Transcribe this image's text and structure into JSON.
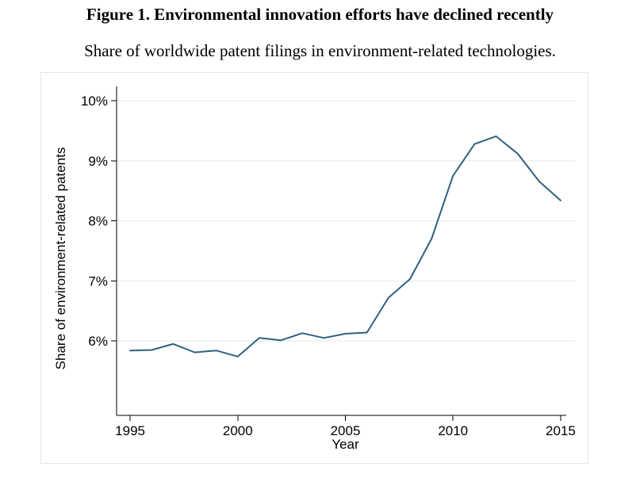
{
  "page": {
    "title": "Figure 1. Environmental innovation efforts have declined recently",
    "subtitle": "Share of worldwide patent filings in environment-related technologies."
  },
  "chart_data": {
    "type": "line",
    "title": "Figure 1. Environmental innovation efforts have declined recently",
    "subtitle": "Share of worldwide patent filings in environment-related technologies.",
    "xlabel": "Year",
    "ylabel": "Share of environment-related patents",
    "x": [
      1995,
      1996,
      1997,
      1998,
      1999,
      2000,
      2001,
      2002,
      2003,
      2004,
      2005,
      2006,
      2007,
      2008,
      2009,
      2010,
      2011,
      2012,
      2013,
      2014,
      2015
    ],
    "values": [
      5.84,
      5.85,
      5.95,
      5.81,
      5.84,
      5.74,
      6.05,
      6.01,
      6.13,
      6.05,
      6.12,
      6.14,
      6.72,
      7.03,
      7.7,
      8.75,
      9.28,
      9.41,
      9.12,
      8.66,
      8.34
    ],
    "x_ticks": [
      {
        "value": 1995,
        "label": "1995"
      },
      {
        "value": 2000,
        "label": "2000"
      },
      {
        "value": 2005,
        "label": "2005"
      },
      {
        "value": 2010,
        "label": "2010"
      },
      {
        "value": 2015,
        "label": "2015"
      }
    ],
    "y_ticks": [
      {
        "value": 6,
        "label": "6%"
      },
      {
        "value": 7,
        "label": "7%"
      },
      {
        "value": 8,
        "label": "8%"
      },
      {
        "value": 9,
        "label": "9%"
      },
      {
        "value": 10,
        "label": "10%"
      }
    ],
    "xlim": [
      1994.37,
      2015.26
    ],
    "ylim": [
      4.76,
      10.24
    ],
    "grid": "horizontal-only",
    "legend": "none",
    "colors": {
      "line": "#30617e",
      "grid": "#e9f1f0",
      "axis": "#000000",
      "frame": "#dee8ec",
      "text": "#000000"
    }
  }
}
